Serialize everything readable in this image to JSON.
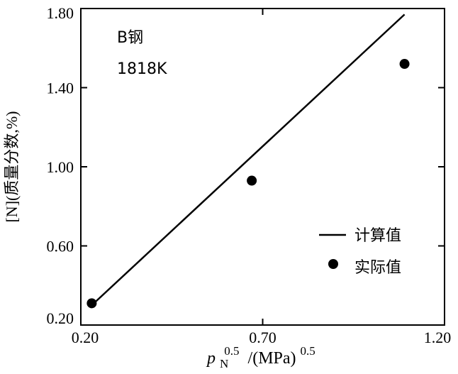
{
  "chart_data": {
    "type": "scatter",
    "xlabel": {
      "symbol": "p",
      "subscript": "N",
      "superscript": "0.5",
      "rest": "/(MPa)",
      "rest_superscript": "0.5"
    },
    "ylabel": "[N](质量分数,%)",
    "xlim": [
      0.2,
      1.2
    ],
    "ylim": [
      0.2,
      1.8
    ],
    "xticks": [
      0.2,
      0.7,
      1.2
    ],
    "xtick_labels": [
      "0.20",
      "0.70",
      "1.20"
    ],
    "yticks": [
      0.2,
      0.6,
      1.0,
      1.4,
      1.8
    ],
    "ytick_labels": [
      "0.20",
      "0.60",
      "1.00",
      "1.40",
      "1.80"
    ],
    "annotations": [
      "B钢",
      "1818K"
    ],
    "legend_placement": "bottom-right",
    "grid": false,
    "series": [
      {
        "name": "计算值",
        "kind": "line",
        "x": [
          0.23,
          1.09
        ],
        "y": [
          0.3,
          1.77
        ]
      },
      {
        "name": "实际值",
        "kind": "scatter",
        "x": [
          0.23,
          0.67,
          1.09
        ],
        "y": [
          0.31,
          0.93,
          1.52
        ]
      }
    ]
  }
}
